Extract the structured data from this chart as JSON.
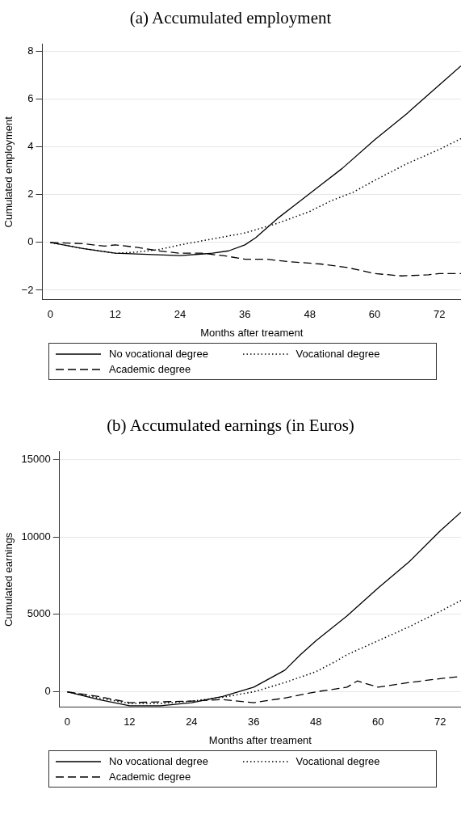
{
  "chart_data": [
    {
      "type": "line",
      "title": "(a) Accumulated employment",
      "xlabel": "Months after treament",
      "ylabel": "Cumulated employment",
      "xlim": [
        -1.5,
        76
      ],
      "xticks": [
        0,
        12,
        24,
        36,
        48,
        60,
        72
      ],
      "ylim": [
        -2.4,
        8.3
      ],
      "yticks": [
        -2,
        0,
        2,
        4,
        6,
        8
      ],
      "grid": "y",
      "legend": "bottom",
      "marker": "none",
      "series": [
        {
          "name": "No vocational degree",
          "color": "#000000",
          "line_style": "solid",
          "x": [
            0,
            6,
            12,
            18,
            24,
            30,
            33,
            36,
            38,
            42,
            46,
            50,
            54,
            60,
            66,
            72,
            76
          ],
          "values": [
            0,
            -0.25,
            -0.45,
            -0.5,
            -0.55,
            -0.45,
            -0.35,
            -0.1,
            0.2,
            1.0,
            1.7,
            2.4,
            3.1,
            4.3,
            5.4,
            6.6,
            7.4
          ]
        },
        {
          "name": "Vocational degree",
          "color": "#000000",
          "line_style": "dotted",
          "x": [
            0,
            6,
            12,
            16,
            20,
            24,
            30,
            36,
            42,
            48,
            52,
            56,
            60,
            66,
            72,
            76
          ],
          "values": [
            0,
            -0.25,
            -0.45,
            -0.4,
            -0.3,
            -0.1,
            0.15,
            0.4,
            0.8,
            1.3,
            1.75,
            2.1,
            2.6,
            3.3,
            3.9,
            4.35
          ]
        },
        {
          "name": "Academic degree",
          "color": "#000000",
          "line_style": "dashed",
          "x": [
            0,
            6,
            10,
            12,
            16,
            20,
            24,
            28,
            32,
            36,
            40,
            44,
            50,
            55,
            60,
            65,
            70,
            72,
            76
          ],
          "values": [
            0,
            -0.05,
            -0.15,
            -0.1,
            -0.2,
            -0.35,
            -0.45,
            -0.45,
            -0.55,
            -0.7,
            -0.7,
            -0.8,
            -0.9,
            -1.05,
            -1.3,
            -1.4,
            -1.35,
            -1.3,
            -1.3
          ]
        }
      ]
    },
    {
      "type": "line",
      "title": "(b) Accumulated earnings (in Euros)",
      "xlabel": "Months after treament",
      "ylabel": "Cumulated earnings",
      "xlim": [
        -1.5,
        76
      ],
      "xticks": [
        0,
        12,
        24,
        36,
        48,
        60,
        72
      ],
      "ylim": [
        -1000,
        15500
      ],
      "yticks": [
        0,
        5000,
        10000,
        15000
      ],
      "grid": "y",
      "legend": "bottom",
      "marker": "none",
      "series": [
        {
          "name": "No vocational degree",
          "color": "#000000",
          "line_style": "solid",
          "x": [
            0,
            6,
            12,
            18,
            24,
            30,
            36,
            42,
            45,
            48,
            54,
            60,
            66,
            72,
            76
          ],
          "values": [
            0,
            -500,
            -900,
            -900,
            -700,
            -300,
            300,
            1400,
            2400,
            3300,
            4900,
            6700,
            8400,
            10400,
            11600
          ]
        },
        {
          "name": "Vocational degree",
          "color": "#000000",
          "line_style": "dotted",
          "x": [
            0,
            6,
            12,
            18,
            24,
            30,
            36,
            42,
            48,
            52,
            54,
            60,
            66,
            72,
            76
          ],
          "values": [
            0,
            -400,
            -750,
            -750,
            -600,
            -350,
            0,
            600,
            1300,
            2000,
            2400,
            3300,
            4200,
            5200,
            5900
          ]
        },
        {
          "name": "Academic degree",
          "color": "#000000",
          "line_style": "dashed",
          "x": [
            0,
            6,
            12,
            18,
            24,
            30,
            36,
            42,
            48,
            54,
            56,
            60,
            66,
            72,
            76
          ],
          "values": [
            0,
            -300,
            -700,
            -650,
            -600,
            -500,
            -700,
            -400,
            0,
            300,
            700,
            300,
            600,
            850,
            1000
          ]
        }
      ]
    }
  ]
}
